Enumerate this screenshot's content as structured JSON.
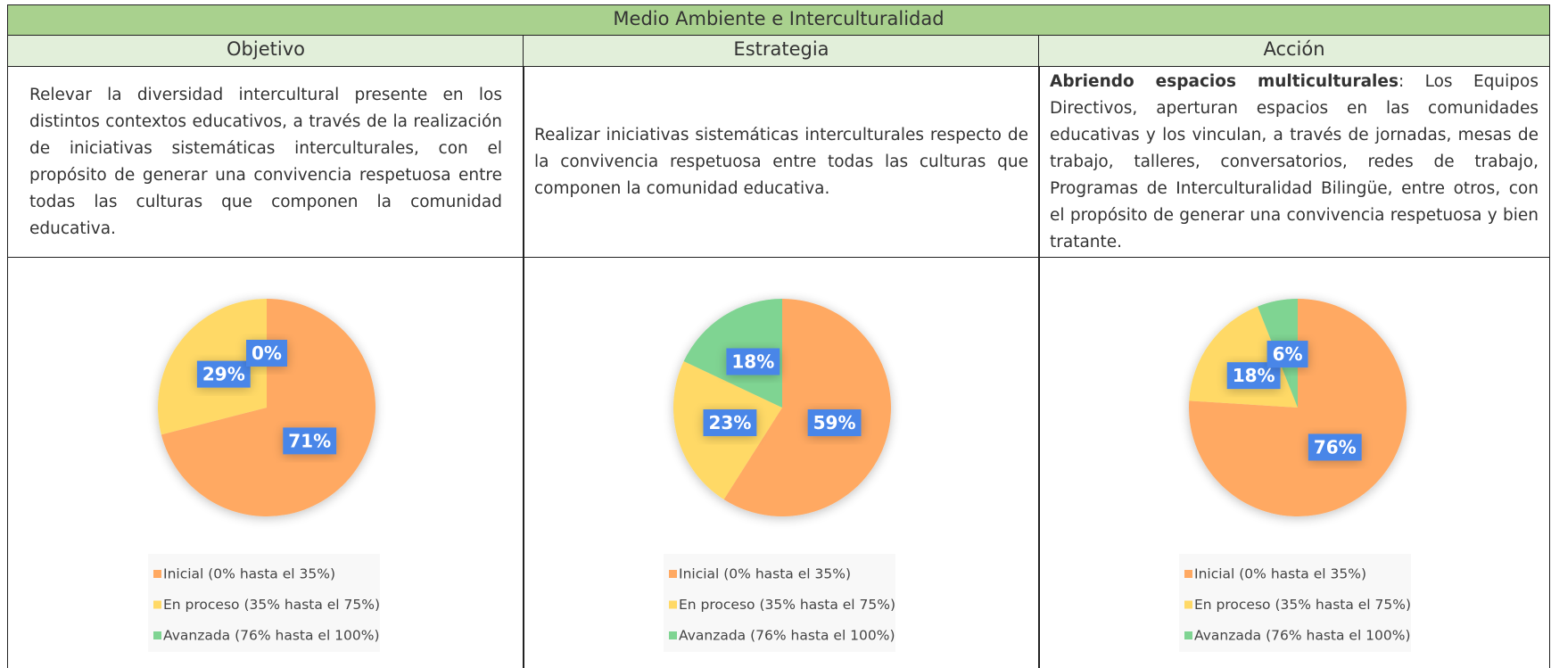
{
  "header": {
    "title": "Medio Ambiente e Interculturalidad"
  },
  "columns": [
    "Objetivo",
    "Estrategia",
    "Acción"
  ],
  "texts": {
    "objetivo": "Relevar la diversidad intercultural presente en los distintos contextos educativos, a través de la realización de iniciativas sistemáticas interculturales, con el propósito de generar una convivencia respetuosa entre todas las culturas que componen la comunidad educativa.",
    "estrategia": "Realizar iniciativas sistemáticas interculturales respecto de la convivencia respetuosa entre todas las culturas que componen la comunidad educativa.",
    "accion_title": "Abriendo espacios multiculturales",
    "accion_body": ": Los Equipos Directivos, aperturan espacios en las comunidades educativas y los vinculan, a través de jornadas, mesas de trabajo, talleres, conversatorios, redes de trabajo, Programas de Interculturalidad Bilingüe, entre otros, con el propósito de generar una convivencia respetuosa y bien tratante."
  },
  "chart_data": [
    {
      "type": "pie",
      "categories": [
        "Inicial (0% hasta el 35%)",
        "En proceso (35% hasta el 75%)",
        "Avanzada (76% hasta el 100%)"
      ],
      "values": [
        71,
        29,
        0
      ],
      "value_labels": [
        "71%",
        "29%",
        "0%"
      ],
      "colors": [
        "#ffa962",
        "#ffd966",
        "#7fd492"
      ]
    },
    {
      "type": "pie",
      "categories": [
        "Inicial (0% hasta el 35%)",
        "En proceso (35% hasta el 75%)",
        "Avanzada (76% hasta el 100%)"
      ],
      "values": [
        59,
        23,
        18
      ],
      "value_labels": [
        "59%",
        "23%",
        "18%"
      ],
      "colors": [
        "#ffa962",
        "#ffd966",
        "#7fd492"
      ]
    },
    {
      "type": "pie",
      "categories": [
        "Inicial (0% hasta el 35%)",
        "En proceso (35% hasta el 75%)",
        "Avanzada (76% hasta el 100%)"
      ],
      "values": [
        76,
        18,
        6
      ],
      "value_labels": [
        "76%",
        "18%",
        "6%"
      ],
      "colors": [
        "#ffa962",
        "#ffd966",
        "#7fd492"
      ]
    }
  ]
}
